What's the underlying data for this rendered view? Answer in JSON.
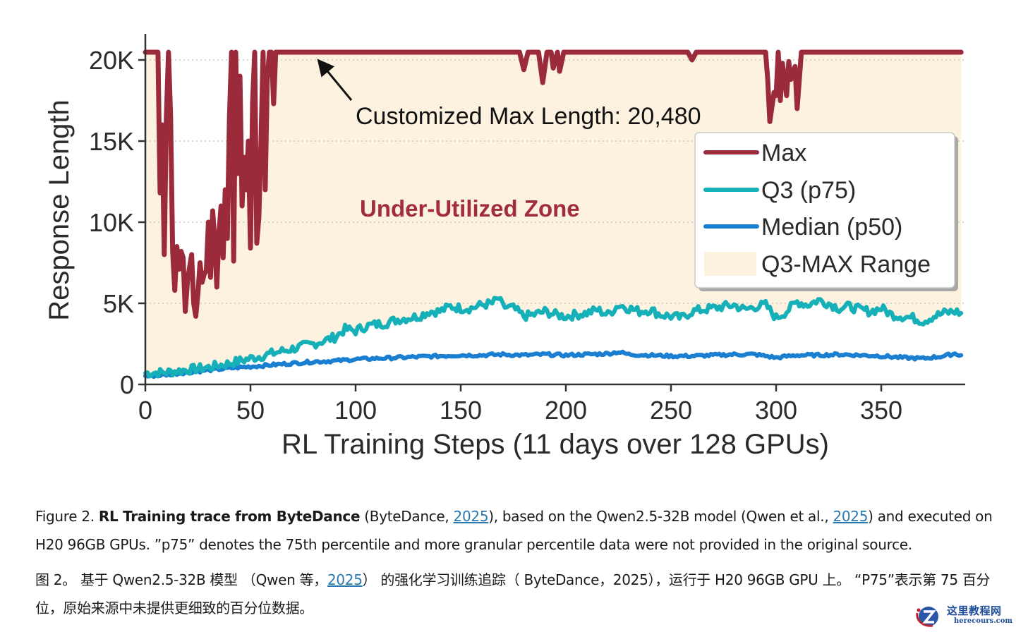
{
  "chart_data": {
    "type": "line",
    "title": "",
    "xlabel": "RL Training Steps (11 days over 128 GPUs)",
    "ylabel": "Response Length",
    "xlim": [
      0,
      390
    ],
    "ylim": [
      0,
      21000
    ],
    "xticks": [
      0,
      50,
      100,
      150,
      200,
      250,
      300,
      350
    ],
    "xtick_labels": [
      "0",
      "50",
      "100",
      "150",
      "200",
      "250",
      "300",
      "350"
    ],
    "yticks": [
      0,
      5000,
      10000,
      15000,
      20000
    ],
    "ytick_labels": [
      "0",
      "5K",
      "10K",
      "15K",
      "20K"
    ],
    "grid": "horizontal dotted",
    "legend_position": "right",
    "legend": [
      {
        "label": "Max",
        "type": "line",
        "color": "#9b2b3a"
      },
      {
        "label": "Q3 (p75)",
        "type": "line",
        "color": "#16b0b8"
      },
      {
        "label": "Median (p50)",
        "type": "line",
        "color": "#1a7fd1"
      },
      {
        "label": "Q3-MAX Range",
        "type": "patch",
        "color": "#fdf1df"
      }
    ],
    "annotations": [
      {
        "text": "Customized Max Length: 20,480",
        "color": "#111111",
        "arrow_to": [
          81,
          20480
        ]
      },
      {
        "text": "Under-Utilized Zone",
        "color": "#a12c3c",
        "bold": true
      }
    ],
    "max_length": 20480,
    "series": [
      {
        "name": "Max",
        "color": "#9b2b3a",
        "points": [
          [
            0,
            20480
          ],
          [
            4,
            20480
          ],
          [
            5,
            20480
          ],
          [
            6,
            20480
          ],
          [
            7,
            11800
          ],
          [
            8,
            16000
          ],
          [
            9,
            8000
          ],
          [
            10,
            16500
          ],
          [
            11,
            20480
          ],
          [
            12,
            16500
          ],
          [
            13,
            8200
          ],
          [
            14,
            5800
          ],
          [
            15,
            8500
          ],
          [
            16,
            7100
          ],
          [
            17,
            8200
          ],
          [
            18,
            7800
          ],
          [
            19,
            4500
          ],
          [
            20,
            6300
          ],
          [
            21,
            7200
          ],
          [
            22,
            8000
          ],
          [
            23,
            5000
          ],
          [
            24,
            4200
          ],
          [
            25,
            5600
          ],
          [
            26,
            7500
          ],
          [
            27,
            6300
          ],
          [
            28,
            6800
          ],
          [
            29,
            7000
          ],
          [
            30,
            10000
          ],
          [
            31,
            6600
          ],
          [
            32,
            10700
          ],
          [
            33,
            9000
          ],
          [
            34,
            6000
          ],
          [
            35,
            9300
          ],
          [
            36,
            11000
          ],
          [
            37,
            7800
          ],
          [
            38,
            12000
          ],
          [
            39,
            9000
          ],
          [
            40,
            16500
          ],
          [
            41,
            20480
          ],
          [
            42,
            7600
          ],
          [
            43,
            20480
          ],
          [
            44,
            13000
          ],
          [
            45,
            19000
          ],
          [
            46,
            11000
          ],
          [
            47,
            14000
          ],
          [
            48,
            12000
          ],
          [
            49,
            15000
          ],
          [
            50,
            8400
          ],
          [
            51,
            17400
          ],
          [
            52,
            20480
          ],
          [
            53,
            8700
          ],
          [
            54,
            10300
          ],
          [
            55,
            15000
          ],
          [
            56,
            20480
          ],
          [
            57,
            12000
          ],
          [
            58,
            18800
          ],
          [
            59,
            20480
          ],
          [
            60,
            20480
          ],
          [
            61,
            17300
          ],
          [
            62,
            20480
          ],
          [
            63,
            20480
          ],
          [
            70,
            20480
          ],
          [
            100,
            20480
          ],
          [
            150,
            20480
          ],
          [
            178,
            20480
          ],
          [
            180,
            19400
          ],
          [
            182,
            20480
          ],
          [
            187,
            20480
          ],
          [
            189,
            18600
          ],
          [
            191,
            20480
          ],
          [
            193,
            20480
          ],
          [
            194,
            19500
          ],
          [
            196,
            20480
          ],
          [
            197,
            19300
          ],
          [
            199,
            20480
          ],
          [
            258,
            20480
          ],
          [
            260,
            20000
          ],
          [
            262,
            20480
          ],
          [
            295,
            20480
          ],
          [
            296,
            18800
          ],
          [
            297,
            16200
          ],
          [
            299,
            18000
          ],
          [
            300,
            17800
          ],
          [
            301,
            20480
          ],
          [
            302,
            17500
          ],
          [
            303,
            19800
          ],
          [
            305,
            17800
          ],
          [
            306,
            19900
          ],
          [
            307,
            18800
          ],
          [
            309,
            19600
          ],
          [
            310,
            17000
          ],
          [
            312,
            20480
          ],
          [
            388,
            20480
          ]
        ]
      },
      {
        "name": "Q3 (p75)",
        "color": "#16b0b8",
        "points": [
          [
            0,
            700
          ],
          [
            10,
            750
          ],
          [
            20,
            900
          ],
          [
            30,
            1050
          ],
          [
            40,
            1300
          ],
          [
            50,
            1600
          ],
          [
            60,
            1900
          ],
          [
            70,
            2200
          ],
          [
            80,
            2500
          ],
          [
            90,
            2900
          ],
          [
            95,
            3400
          ],
          [
            100,
            3300
          ],
          [
            105,
            3600
          ],
          [
            110,
            3700
          ],
          [
            115,
            3800
          ],
          [
            120,
            4000
          ],
          [
            125,
            4100
          ],
          [
            130,
            4200
          ],
          [
            135,
            4500
          ],
          [
            140,
            4500
          ],
          [
            145,
            4800
          ],
          [
            150,
            4700
          ],
          [
            155,
            4700
          ],
          [
            160,
            4900
          ],
          [
            165,
            5000
          ],
          [
            168,
            5300
          ],
          [
            170,
            4800
          ],
          [
            175,
            4700
          ],
          [
            180,
            4200
          ],
          [
            185,
            4300
          ],
          [
            190,
            4500
          ],
          [
            195,
            4300
          ],
          [
            200,
            4200
          ],
          [
            205,
            4300
          ],
          [
            210,
            4400
          ],
          [
            215,
            4600
          ],
          [
            220,
            4300
          ],
          [
            225,
            4900
          ],
          [
            230,
            4700
          ],
          [
            235,
            4500
          ],
          [
            240,
            4600
          ],
          [
            245,
            4300
          ],
          [
            250,
            4200
          ],
          [
            255,
            4100
          ],
          [
            260,
            4500
          ],
          [
            265,
            4600
          ],
          [
            270,
            4700
          ],
          [
            275,
            4800
          ],
          [
            280,
            4900
          ],
          [
            285,
            4600
          ],
          [
            290,
            4800
          ],
          [
            295,
            4900
          ],
          [
            300,
            4100
          ],
          [
            305,
            4500
          ],
          [
            310,
            5100
          ],
          [
            315,
            4900
          ],
          [
            320,
            5200
          ],
          [
            325,
            5000
          ],
          [
            330,
            4700
          ],
          [
            335,
            4800
          ],
          [
            340,
            4600
          ],
          [
            345,
            4500
          ],
          [
            350,
            4700
          ],
          [
            355,
            4300
          ],
          [
            360,
            4200
          ],
          [
            365,
            4100
          ],
          [
            370,
            3900
          ],
          [
            375,
            4200
          ],
          [
            380,
            4400
          ],
          [
            385,
            4500
          ],
          [
            388,
            4400
          ]
        ]
      },
      {
        "name": "Median (p50)",
        "color": "#1a7fd1",
        "points": [
          [
            0,
            500
          ],
          [
            10,
            600
          ],
          [
            20,
            750
          ],
          [
            30,
            880
          ],
          [
            40,
            1000
          ],
          [
            50,
            1100
          ],
          [
            60,
            1200
          ],
          [
            70,
            1300
          ],
          [
            80,
            1400
          ],
          [
            90,
            1450
          ],
          [
            100,
            1550
          ],
          [
            110,
            1600
          ],
          [
            120,
            1650
          ],
          [
            130,
            1700
          ],
          [
            140,
            1750
          ],
          [
            150,
            1800
          ],
          [
            160,
            1800
          ],
          [
            170,
            1850
          ],
          [
            180,
            1800
          ],
          [
            190,
            1850
          ],
          [
            200,
            1800
          ],
          [
            210,
            1850
          ],
          [
            220,
            1900
          ],
          [
            225,
            2000
          ],
          [
            230,
            1850
          ],
          [
            240,
            1800
          ],
          [
            250,
            1750
          ],
          [
            260,
            1750
          ],
          [
            270,
            1800
          ],
          [
            280,
            1850
          ],
          [
            290,
            1850
          ],
          [
            300,
            1650
          ],
          [
            310,
            1800
          ],
          [
            320,
            1800
          ],
          [
            330,
            1850
          ],
          [
            340,
            1800
          ],
          [
            350,
            1750
          ],
          [
            360,
            1650
          ],
          [
            370,
            1600
          ],
          [
            380,
            1750
          ],
          [
            385,
            1900
          ],
          [
            388,
            1800
          ]
        ]
      }
    ]
  },
  "caption": {
    "en": {
      "prefix": "Figure 2. ",
      "bold": "RL Training trace from ByteDance",
      "part1": " (ByteDance, ",
      "link1": "2025",
      "part2": "), based on the Qwen2.5-32B model  (Qwen et al., ",
      "link2": "2025",
      "part3": ") and executed on H20 96GB GPUs. ”p75” denotes the 75th percentile and more granular percentile data were not provided in the original source."
    },
    "zh": {
      "part1": "图 2。 基于 Qwen2.5-32B 模型 （Qwen 等，",
      "link1": "2025",
      "part2": "） 的强化学习训练追踪（ ByteDance，2025），运行于 H20 96GB GPU 上。 “P75”表示第 75 百分位，原始来源中未提供更细致的百分位数据。"
    }
  },
  "watermark": {
    "cn": "这里教程网",
    "en": "herecours.com"
  }
}
